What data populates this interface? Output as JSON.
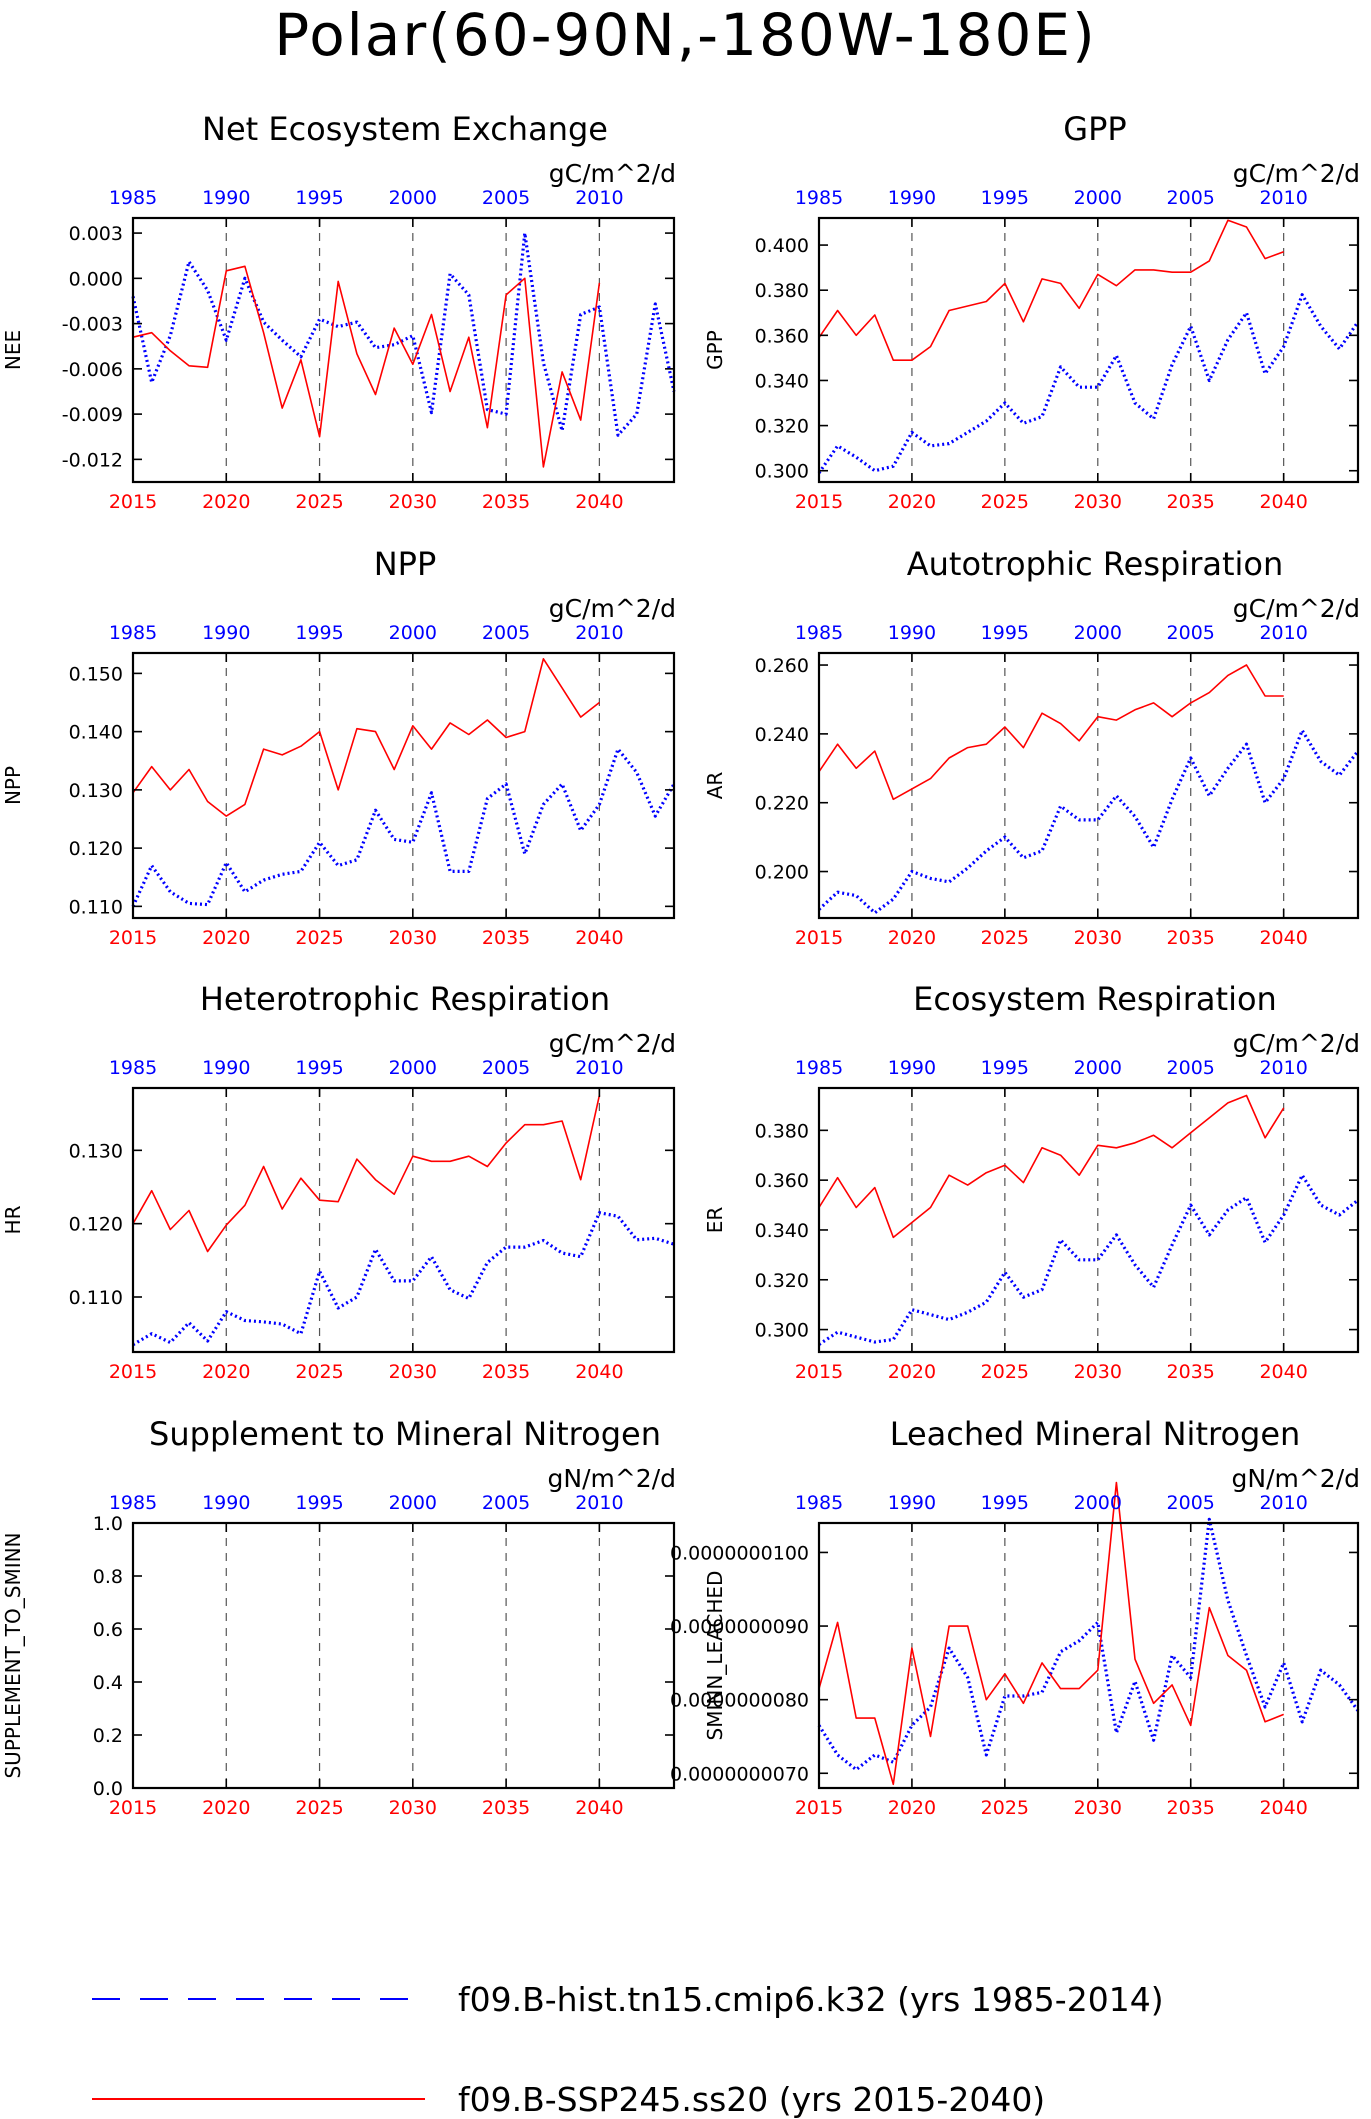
{
  "page": {
    "title": "Polar(60-90N,-180W-180E)"
  },
  "styles": {
    "hist_color": "#0000ff",
    "ssp_color": "#ff0000",
    "top_axis_color": "#0000ff",
    "bottom_axis_color": "#ff0000"
  },
  "legend": {
    "hist_label": "f09.B-hist.tn15.cmip6.k32 (yrs 1985-2014)",
    "ssp_label": "f09.B-SSP245.ss20 (yrs 2015-2040)"
  },
  "chart_data": [
    {
      "type": "line",
      "title": "Net Ecosystem Exchange",
      "units": "gC/m^2/d",
      "ylabel": "NEE",
      "ylim": [
        -0.0135,
        0.004
      ],
      "yticks": [
        0.003,
        0.0,
        -0.003,
        -0.006,
        -0.009,
        -0.012
      ],
      "ytick_labels": [
        "0.003",
        "0.000",
        "-0.003",
        "-0.006",
        "-0.009",
        "-0.012"
      ],
      "x_top_labels": [
        "1985",
        "1990",
        "1995",
        "2000",
        "2005",
        "2010"
      ],
      "x_bottom_labels": [
        "2015",
        "2020",
        "2025",
        "2030",
        "2035",
        "2040"
      ],
      "xlim": [
        2015,
        2044
      ],
      "series": [
        {
          "role": "hist",
          "x_start": 2015,
          "values": [
            -0.0012,
            -0.0069,
            -0.0038,
            0.0011,
            -0.0008,
            -0.0041,
            0.0,
            -0.0029,
            -0.0041,
            -0.0052,
            -0.0027,
            -0.0032,
            -0.0029,
            -0.0046,
            -0.0044,
            -0.0038,
            -0.0089,
            0.0003,
            -0.0011,
            -0.0087,
            -0.009,
            0.003,
            -0.0056,
            -0.0101,
            -0.0024,
            -0.0019,
            -0.0104,
            -0.009,
            -0.0017,
            -0.0075
          ]
        },
        {
          "role": "ssp",
          "x_start": 2015,
          "values": [
            -0.0039,
            -0.0036,
            -0.0048,
            -0.0058,
            -0.0059,
            0.0005,
            0.0008,
            -0.0036,
            -0.0086,
            -0.0054,
            -0.0105,
            -0.0002,
            -0.005,
            -0.0077,
            -0.0033,
            -0.0057,
            -0.0024,
            -0.0075,
            -0.0039,
            -0.0099,
            -0.0011,
            0.0,
            -0.0125,
            -0.0062,
            -0.0094,
            -0.0003
          ]
        }
      ]
    },
    {
      "type": "line",
      "title": "GPP",
      "units": "gC/m^2/d",
      "ylabel": "GPP",
      "ylim": [
        0.295,
        0.412
      ],
      "yticks": [
        0.3,
        0.32,
        0.34,
        0.36,
        0.38,
        0.4
      ],
      "ytick_labels": [
        "0.300",
        "0.320",
        "0.340",
        "0.360",
        "0.380",
        "0.400"
      ],
      "x_top_labels": [
        "1985",
        "1990",
        "1995",
        "2000",
        "2005",
        "2010"
      ],
      "x_bottom_labels": [
        "2015",
        "2020",
        "2025",
        "2030",
        "2035",
        "2040"
      ],
      "xlim": [
        2015,
        2044
      ],
      "series": [
        {
          "role": "hist",
          "x_start": 2015,
          "values": [
            0.299,
            0.311,
            0.306,
            0.3,
            0.302,
            0.317,
            0.311,
            0.312,
            0.317,
            0.322,
            0.33,
            0.321,
            0.324,
            0.346,
            0.337,
            0.337,
            0.351,
            0.33,
            0.323,
            0.347,
            0.364,
            0.34,
            0.358,
            0.37,
            0.343,
            0.355,
            0.378,
            0.364,
            0.354,
            0.366
          ]
        },
        {
          "role": "ssp",
          "x_start": 2015,
          "values": [
            0.359,
            0.371,
            0.36,
            0.369,
            0.349,
            0.349,
            0.355,
            0.371,
            0.373,
            0.375,
            0.383,
            0.366,
            0.385,
            0.383,
            0.372,
            0.387,
            0.382,
            0.389,
            0.389,
            0.388,
            0.388,
            0.393,
            0.411,
            0.408,
            0.394,
            0.397
          ]
        }
      ]
    },
    {
      "type": "line",
      "title": "NPP",
      "units": "gC/m^2/d",
      "ylabel": "NPP",
      "ylim": [
        0.108,
        0.1535
      ],
      "yticks": [
        0.11,
        0.12,
        0.13,
        0.14,
        0.15
      ],
      "ytick_labels": [
        "0.110",
        "0.120",
        "0.130",
        "0.140",
        "0.150"
      ],
      "x_top_labels": [
        "1985",
        "1990",
        "1995",
        "2000",
        "2005",
        "2010"
      ],
      "x_bottom_labels": [
        "2015",
        "2020",
        "2025",
        "2030",
        "2035",
        "2040"
      ],
      "xlim": [
        2015,
        2044
      ],
      "series": [
        {
          "role": "hist",
          "x_start": 2015,
          "values": [
            0.11,
            0.117,
            0.1125,
            0.1105,
            0.1103,
            0.1175,
            0.1125,
            0.1145,
            0.1155,
            0.116,
            0.121,
            0.117,
            0.118,
            0.1265,
            0.1215,
            0.121,
            0.1295,
            0.116,
            0.116,
            0.1285,
            0.131,
            0.119,
            0.1275,
            0.131,
            0.123,
            0.1275,
            0.137,
            0.133,
            0.1255,
            0.131
          ]
        },
        {
          "role": "ssp",
          "x_start": 2015,
          "values": [
            0.1295,
            0.134,
            0.13,
            0.1335,
            0.128,
            0.1255,
            0.1275,
            0.137,
            0.136,
            0.1375,
            0.14,
            0.13,
            0.1405,
            0.14,
            0.1335,
            0.141,
            0.137,
            0.1415,
            0.1395,
            0.142,
            0.139,
            0.14,
            0.1525,
            0.1475,
            0.1425,
            0.145
          ]
        }
      ]
    },
    {
      "type": "line",
      "title": "Autotrophic Respiration",
      "units": "gC/m^2/d",
      "ylabel": "AR",
      "ylim": [
        0.1865,
        0.2635
      ],
      "yticks": [
        0.2,
        0.22,
        0.24,
        0.26
      ],
      "ytick_labels": [
        "0.200",
        "0.220",
        "0.240",
        "0.260"
      ],
      "x_top_labels": [
        "1985",
        "1990",
        "1995",
        "2000",
        "2005",
        "2010"
      ],
      "x_bottom_labels": [
        "2015",
        "2020",
        "2025",
        "2030",
        "2035",
        "2040"
      ],
      "xlim": [
        2015,
        2044
      ],
      "series": [
        {
          "role": "hist",
          "x_start": 2015,
          "values": [
            0.189,
            0.194,
            0.193,
            0.188,
            0.192,
            0.2,
            0.198,
            0.197,
            0.201,
            0.206,
            0.21,
            0.204,
            0.206,
            0.219,
            0.215,
            0.215,
            0.222,
            0.216,
            0.207,
            0.221,
            0.233,
            0.222,
            0.23,
            0.237,
            0.22,
            0.227,
            0.241,
            0.232,
            0.228,
            0.235
          ]
        },
        {
          "role": "ssp",
          "x_start": 2015,
          "values": [
            0.229,
            0.237,
            0.23,
            0.235,
            0.221,
            0.224,
            0.227,
            0.233,
            0.236,
            0.237,
            0.242,
            0.236,
            0.246,
            0.243,
            0.238,
            0.245,
            0.244,
            0.247,
            0.249,
            0.245,
            0.249,
            0.252,
            0.257,
            0.26,
            0.251,
            0.251
          ]
        }
      ]
    },
    {
      "type": "line",
      "title": "Heterotrophic Respiration",
      "units": "gC/m^2/d",
      "ylabel": "HR",
      "ylim": [
        0.1025,
        0.1385
      ],
      "yticks": [
        0.11,
        0.12,
        0.13
      ],
      "ytick_labels": [
        "0.110",
        "0.120",
        "0.130"
      ],
      "x_top_labels": [
        "1985",
        "1990",
        "1995",
        "2000",
        "2005",
        "2010"
      ],
      "x_bottom_labels": [
        "2015",
        "2020",
        "2025",
        "2030",
        "2035",
        "2040"
      ],
      "xlim": [
        2015,
        2044
      ],
      "series": [
        {
          "role": "hist",
          "x_start": 2015,
          "values": [
            0.1035,
            0.105,
            0.1038,
            0.1065,
            0.104,
            0.108,
            0.1068,
            0.1066,
            0.1063,
            0.105,
            0.1135,
            0.1085,
            0.11,
            0.1165,
            0.1122,
            0.1122,
            0.1155,
            0.111,
            0.1098,
            0.1147,
            0.1168,
            0.1168,
            0.1177,
            0.116,
            0.1155,
            0.1215,
            0.121,
            0.1178,
            0.118,
            0.1172
          ]
        },
        {
          "role": "ssp",
          "x_start": 2015,
          "values": [
            0.12,
            0.1245,
            0.1192,
            0.1218,
            0.1162,
            0.1198,
            0.1225,
            0.1278,
            0.122,
            0.1262,
            0.1232,
            0.123,
            0.1288,
            0.126,
            0.124,
            0.1292,
            0.1285,
            0.1285,
            0.1292,
            0.1278,
            0.131,
            0.1335,
            0.1335,
            0.134,
            0.126,
            0.1375
          ]
        }
      ]
    },
    {
      "type": "line",
      "title": "Ecosystem Respiration",
      "units": "gC/m^2/d",
      "ylabel": "ER",
      "ylim": [
        0.291,
        0.397
      ],
      "yticks": [
        0.3,
        0.32,
        0.34,
        0.36,
        0.38
      ],
      "ytick_labels": [
        "0.300",
        "0.320",
        "0.340",
        "0.360",
        "0.380"
      ],
      "x_top_labels": [
        "1985",
        "1990",
        "1995",
        "2000",
        "2005",
        "2010"
      ],
      "x_bottom_labels": [
        "2015",
        "2020",
        "2025",
        "2030",
        "2035",
        "2040"
      ],
      "xlim": [
        2015,
        2044
      ],
      "series": [
        {
          "role": "hist",
          "x_start": 2015,
          "values": [
            0.294,
            0.299,
            0.297,
            0.295,
            0.296,
            0.308,
            0.306,
            0.304,
            0.307,
            0.311,
            0.323,
            0.313,
            0.316,
            0.336,
            0.328,
            0.328,
            0.338,
            0.326,
            0.317,
            0.334,
            0.35,
            0.338,
            0.348,
            0.353,
            0.335,
            0.346,
            0.362,
            0.35,
            0.346,
            0.352
          ]
        },
        {
          "role": "ssp",
          "x_start": 2015,
          "values": [
            0.349,
            0.361,
            0.349,
            0.357,
            0.337,
            0.343,
            0.349,
            0.362,
            0.358,
            0.363,
            0.366,
            0.359,
            0.373,
            0.37,
            0.362,
            0.374,
            0.373,
            0.375,
            0.378,
            0.373,
            0.379,
            0.385,
            0.391,
            0.394,
            0.377,
            0.389
          ]
        }
      ]
    },
    {
      "type": "line",
      "title": "Supplement to Mineral Nitrogen",
      "units": "gN/m^2/d",
      "ylabel": "SUPPLEMENT_TO_SMINN",
      "ylim": [
        0.0,
        1.0
      ],
      "yticks": [
        0.0,
        0.2,
        0.4,
        0.6,
        0.8,
        1.0
      ],
      "ytick_labels": [
        "0.0",
        "0.2",
        "0.4",
        "0.6",
        "0.8",
        "1.0"
      ],
      "x_top_labels": [
        "1985",
        "1990",
        "1995",
        "2000",
        "2005",
        "2010"
      ],
      "x_bottom_labels": [
        "2015",
        "2020",
        "2025",
        "2030",
        "2035",
        "2040"
      ],
      "xlim": [
        2015,
        2044
      ],
      "series": []
    },
    {
      "type": "line",
      "title": "Leached Mineral Nitrogen",
      "units": "gN/m^2/d",
      "ylabel": "SMINN_LEACHED",
      "ylim": [
        6.8e-09,
        1.04e-08
      ],
      "yticks": [
        7e-09,
        8e-09,
        9e-09,
        1e-08
      ],
      "ytick_labels": [
        "0.0000000070",
        "0.0000000080",
        "0.0000000090",
        "0.0000000100"
      ],
      "x_top_labels": [
        "1985",
        "1990",
        "1995",
        "2000",
        "2005",
        "2010"
      ],
      "x_bottom_labels": [
        "2015",
        "2020",
        "2025",
        "2030",
        "2035",
        "2040"
      ],
      "xlim": [
        2015,
        2044
      ],
      "series": [
        {
          "role": "hist",
          "x_start": 2015,
          "values": [
            7.65e-09,
            7.25e-09,
            7.05e-09,
            7.25e-09,
            7.15e-09,
            7.65e-09,
            7.9e-09,
            8.7e-09,
            8.3e-09,
            7.25e-09,
            8.05e-09,
            8.05e-09,
            8.1e-09,
            8.65e-09,
            8.8e-09,
            9.05e-09,
            7.55e-09,
            8.25e-09,
            7.45e-09,
            8.6e-09,
            8.3e-09,
            1.045e-08,
            9.35e-09,
            8.6e-09,
            7.9e-09,
            8.5e-09,
            7.7e-09,
            8.4e-09,
            8.2e-09,
            7.85e-09
          ]
        },
        {
          "role": "ssp",
          "x_start": 2015,
          "values": [
            8.15e-09,
            9.05e-09,
            7.75e-09,
            7.75e-09,
            6.85e-09,
            8.7e-09,
            7.5e-09,
            9e-09,
            9e-09,
            8e-09,
            8.35e-09,
            7.95e-09,
            8.5e-09,
            8.15e-09,
            8.15e-09,
            8.4e-09,
            1.095e-08,
            8.55e-09,
            7.95e-09,
            8.2e-09,
            7.65e-09,
            9.25e-09,
            8.6e-09,
            8.4e-09,
            7.7e-09,
            7.8e-09
          ]
        }
      ]
    }
  ]
}
